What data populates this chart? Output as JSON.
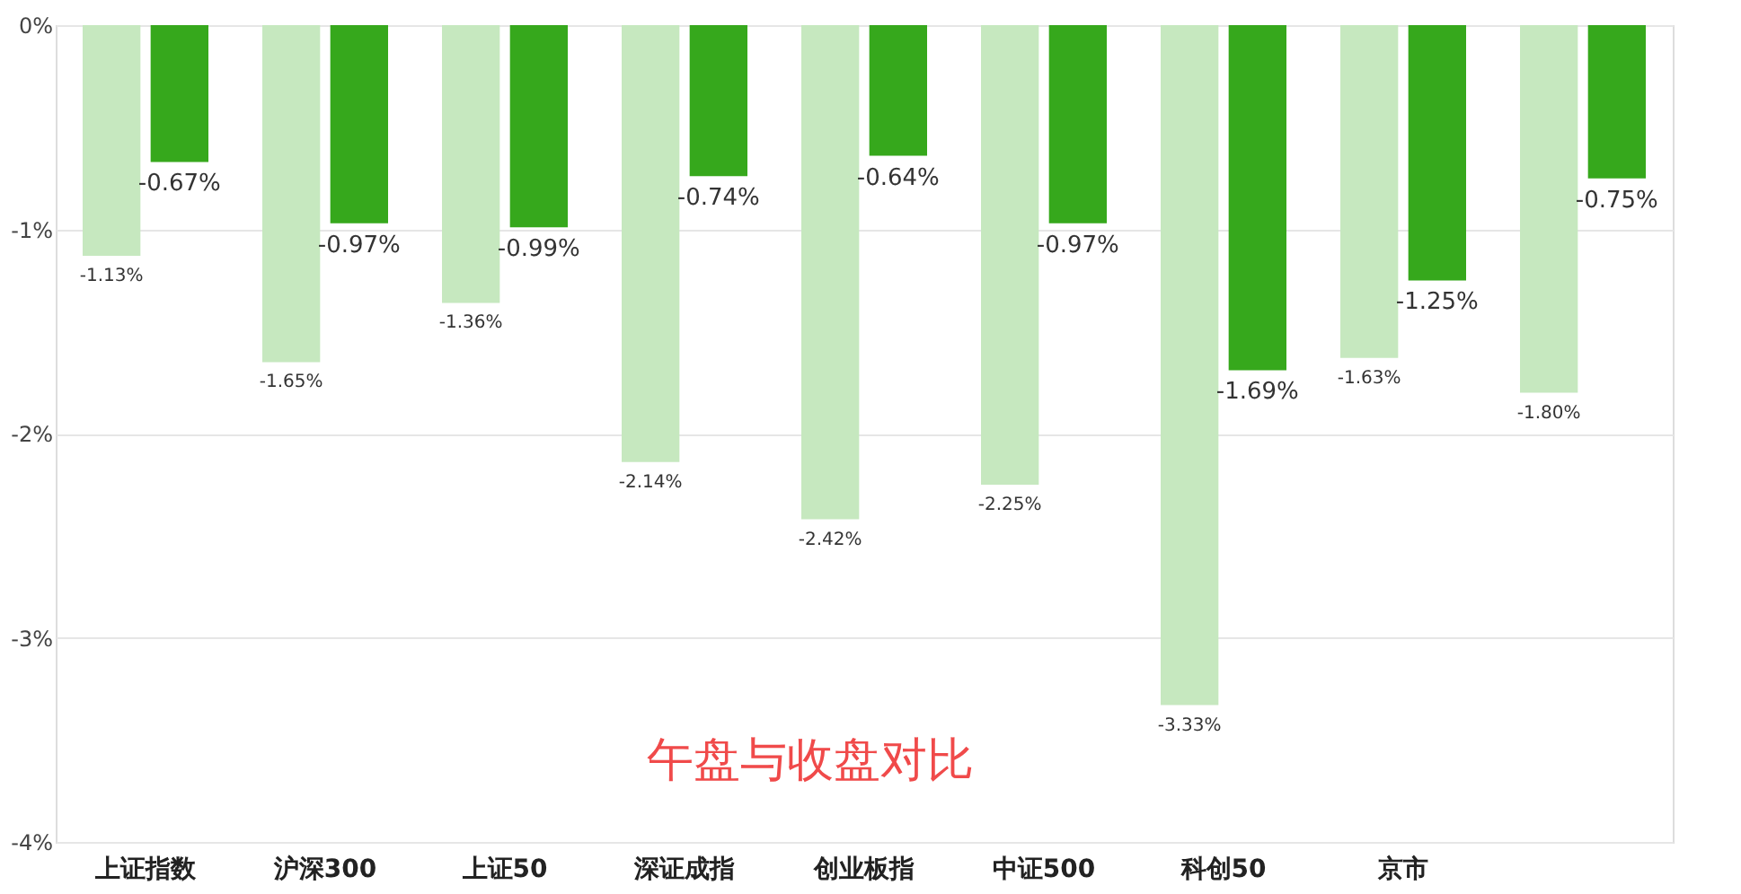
{
  "chart_data": {
    "type": "bar",
    "categories": [
      "上证指数",
      "沪深300",
      "上证50",
      "深证成指",
      "创业板指",
      "中证500",
      "科创50",
      "京市",
      null
    ],
    "series": [
      {
        "color": "#c6e8bf",
        "values": [
          -1.13,
          -1.65,
          -1.36,
          -2.14,
          -2.42,
          -2.25,
          -3.33,
          -1.63,
          -1.8
        ],
        "value_labels": [
          "-1.13%",
          "-1.65%",
          "-1.36%",
          "-2.14%",
          "-2.42%",
          "-2.25%",
          "-3.33%",
          "-1.63%",
          "-1.80%"
        ]
      },
      {
        "color": "#36a81c",
        "values": [
          -0.67,
          -0.97,
          -0.99,
          -0.74,
          -0.64,
          -0.97,
          -1.69,
          -1.25,
          -0.75
        ],
        "value_labels": [
          "-0.67%",
          "-0.97%",
          "-0.99%",
          "-0.74%",
          "-0.64%",
          "-0.97%",
          "-1.69%",
          "-1.25%",
          "-0.75%"
        ]
      }
    ],
    "ylim": [
      -4,
      0
    ],
    "yticks": [
      {
        "value": 0,
        "label": "0%"
      },
      {
        "value": -1,
        "label": "-1%"
      },
      {
        "value": -2,
        "label": "-2%"
      },
      {
        "value": -3,
        "label": "-3%"
      },
      {
        "value": -4,
        "label": "-4%"
      }
    ],
    "grid": "y",
    "annotations": [
      "午盘与收盘对比"
    ]
  }
}
